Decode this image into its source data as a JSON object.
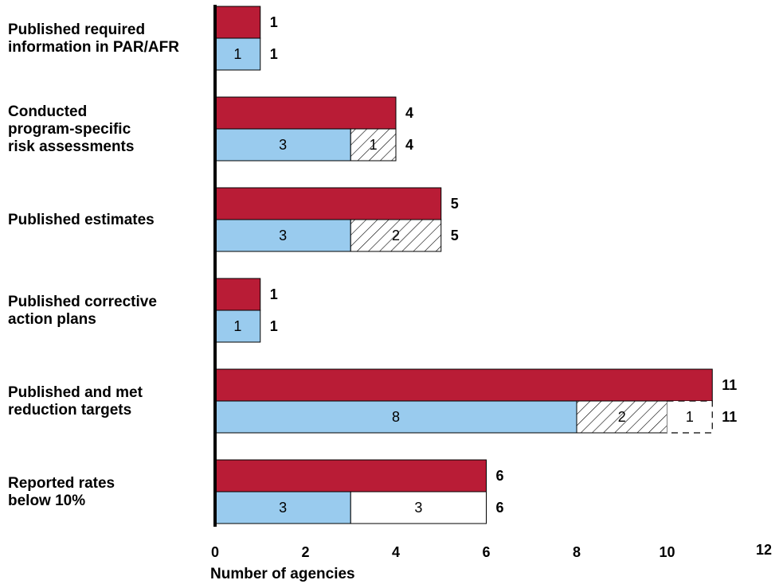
{
  "chart_data": {
    "type": "bar",
    "orientation": "horizontal",
    "categories": [
      [
        "Published required",
        "information in PAR/AFR"
      ],
      [
        "Conducted",
        "program-specific",
        "risk assessments"
      ],
      [
        "Published estimates"
      ],
      [
        "Published corrective",
        "action plans"
      ],
      [
        "Published and met",
        "reduction targets"
      ],
      [
        "Reported rates",
        "below 10%"
      ]
    ],
    "top_bars": {
      "color": "#b91c36",
      "values": [
        1,
        4,
        5,
        1,
        11,
        6
      ],
      "labels": [
        "1",
        "4",
        "5",
        "1",
        "11",
        "6"
      ]
    },
    "bottom_bars": [
      {
        "segments": [
          {
            "value": 1,
            "label": "1",
            "style": "solid",
            "color": "#99cbee"
          }
        ],
        "total_label": "1"
      },
      {
        "segments": [
          {
            "value": 3,
            "label": "3",
            "style": "solid",
            "color": "#99cbee"
          },
          {
            "value": 1,
            "label": "1",
            "style": "hatched",
            "color": "#ffffff"
          }
        ],
        "total_label": "4"
      },
      {
        "segments": [
          {
            "value": 3,
            "label": "3",
            "style": "solid",
            "color": "#99cbee"
          },
          {
            "value": 2,
            "label": "2",
            "style": "hatched",
            "color": "#ffffff"
          }
        ],
        "total_label": "5"
      },
      {
        "segments": [
          {
            "value": 1,
            "label": "1",
            "style": "solid",
            "color": "#99cbee"
          }
        ],
        "total_label": "1"
      },
      {
        "segments": [
          {
            "value": 8,
            "label": "8",
            "style": "solid",
            "color": "#99cbee"
          },
          {
            "value": 2,
            "label": "2",
            "style": "hatched",
            "color": "#ffffff"
          },
          {
            "value": 1,
            "label": "1",
            "style": "dashed",
            "color": "#ffffff"
          }
        ],
        "total_label": "11"
      },
      {
        "segments": [
          {
            "value": 3,
            "label": "3",
            "style": "solid",
            "color": "#99cbee"
          },
          {
            "value": 3,
            "label": "3",
            "style": "white",
            "color": "#ffffff"
          }
        ],
        "total_label": "6"
      }
    ],
    "xticks": [
      "0",
      "2",
      "4",
      "6",
      "8",
      "10",
      "12"
    ],
    "xlim": [
      0,
      12
    ],
    "xlabel": "Number of agencies",
    "grid": false,
    "legend": "none"
  }
}
